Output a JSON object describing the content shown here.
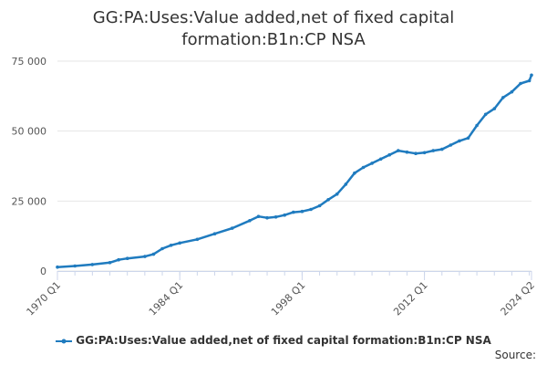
{
  "title_line1": "GG:PA:Uses:Value added,net of fixed capital",
  "title_line2": "formation:B1n:CP NSA",
  "source_label": "Source:",
  "colors": {
    "series": "#1f7bbf",
    "grid": "#e6e6e6",
    "axis": "#ccd6eb"
  },
  "chart_data": {
    "type": "line",
    "title": "GG:PA:Uses:Value added,net of fixed capital formation:B1n:CP NSA",
    "xlabel": "",
    "ylabel": "",
    "x_ticks": [
      "1970 Q1",
      "1984 Q1",
      "1998 Q1",
      "2012 Q1",
      "2024 Q2"
    ],
    "y_ticks": [
      "0",
      "25 000",
      "50 000",
      "75 000"
    ],
    "ylim": [
      0,
      75000
    ],
    "grid": true,
    "legend_position": "bottom",
    "series": [
      {
        "name": "GG:PA:Uses:Value added,net of fixed capital formation:B1n:CP NSA",
        "points": [
          [
            "1970 Q1",
            1400
          ],
          [
            "1972 Q1",
            1800
          ],
          [
            "1974 Q1",
            2300
          ],
          [
            "1976 Q1",
            3000
          ],
          [
            "1977 Q1",
            4000
          ],
          [
            "1978 Q1",
            4500
          ],
          [
            "1980 Q1",
            5200
          ],
          [
            "1981 Q1",
            6000
          ],
          [
            "1982 Q1",
            8000
          ],
          [
            "1983 Q1",
            9200
          ],
          [
            "1984 Q1",
            10000
          ],
          [
            "1986 Q1",
            11300
          ],
          [
            "1988 Q1",
            13300
          ],
          [
            "1990 Q1",
            15300
          ],
          [
            "1992 Q1",
            18000
          ],
          [
            "1993 Q1",
            19500
          ],
          [
            "1994 Q1",
            19000
          ],
          [
            "1995 Q1",
            19300
          ],
          [
            "1996 Q1",
            20000
          ],
          [
            "1997 Q1",
            21000
          ],
          [
            "1998 Q1",
            21300
          ],
          [
            "1999 Q1",
            22000
          ],
          [
            "2000 Q1",
            23300
          ],
          [
            "2001 Q1",
            25500
          ],
          [
            "2002 Q1",
            27500
          ],
          [
            "2003 Q1",
            31000
          ],
          [
            "2004 Q1",
            35000
          ],
          [
            "2005 Q1",
            37000
          ],
          [
            "2006 Q1",
            38500
          ],
          [
            "2007 Q1",
            40000
          ],
          [
            "2008 Q1",
            41500
          ],
          [
            "2009 Q1",
            43000
          ],
          [
            "2010 Q1",
            42500
          ],
          [
            "2011 Q1",
            42000
          ],
          [
            "2012 Q1",
            42300
          ],
          [
            "2013 Q1",
            43000
          ],
          [
            "2014 Q1",
            43500
          ],
          [
            "2015 Q1",
            45000
          ],
          [
            "2016 Q1",
            46500
          ],
          [
            "2017 Q1",
            47500
          ],
          [
            "2018 Q1",
            52000
          ],
          [
            "2019 Q1",
            56000
          ],
          [
            "2020 Q1",
            58000
          ],
          [
            "2021 Q1",
            62000
          ],
          [
            "2022 Q1",
            64000
          ],
          [
            "2023 Q1",
            67000
          ],
          [
            "2024 Q1",
            68000
          ],
          [
            "2024 Q2",
            70000
          ]
        ]
      }
    ]
  }
}
